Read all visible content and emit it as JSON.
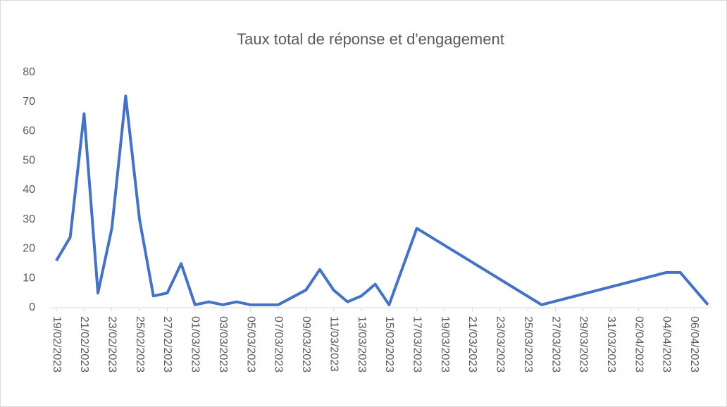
{
  "chart_data": {
    "type": "line",
    "title": "Taux total de réponse et d'engagement",
    "x": [
      "19/02/2023",
      "20/02/2023",
      "21/02/2023",
      "22/02/2023",
      "23/02/2023",
      "24/02/2023",
      "25/02/2023",
      "26/02/2023",
      "27/02/2023",
      "28/02/2023",
      "01/03/2023",
      "02/03/2023",
      "03/03/2023",
      "04/03/2023",
      "05/03/2023",
      "06/03/2023",
      "07/03/2023",
      "09/03/2023",
      "10/03/2023",
      "11/03/2023",
      "12/03/2023",
      "13/03/2023",
      "14/03/2023",
      "15/03/2023",
      "17/03/2023",
      "26/03/2023",
      "04/04/2023",
      "05/04/2023",
      "07/04/2023"
    ],
    "series": [
      {
        "name": "Taux total",
        "color": "#4472c4",
        "values": [
          16,
          24,
          66,
          5,
          27,
          72,
          30,
          4,
          5,
          15,
          1,
          2,
          1,
          2,
          1,
          1,
          1,
          6,
          13,
          6,
          2,
          4,
          8,
          1,
          27,
          1,
          12,
          12,
          1
        ]
      }
    ],
    "xlim": [
      "19/02/2023",
      "07/04/2023"
    ],
    "xticks": [
      "19/02/2023",
      "21/02/2023",
      "23/02/2023",
      "25/02/2023",
      "27/02/2023",
      "01/03/2023",
      "03/03/2023",
      "05/03/2023",
      "07/03/2023",
      "09/03/2023",
      "11/03/2023",
      "13/03/2023",
      "15/03/2023",
      "17/03/2023",
      "19/03/2023",
      "21/03/2023",
      "23/03/2023",
      "25/03/2023",
      "27/03/2023",
      "29/03/2023",
      "31/03/2023",
      "02/04/2023",
      "04/04/2023",
      "06/04/2023"
    ],
    "ylim": [
      0,
      80
    ],
    "yticks": [
      0,
      10,
      20,
      30,
      40,
      50,
      60,
      70,
      80
    ],
    "grid": false
  }
}
